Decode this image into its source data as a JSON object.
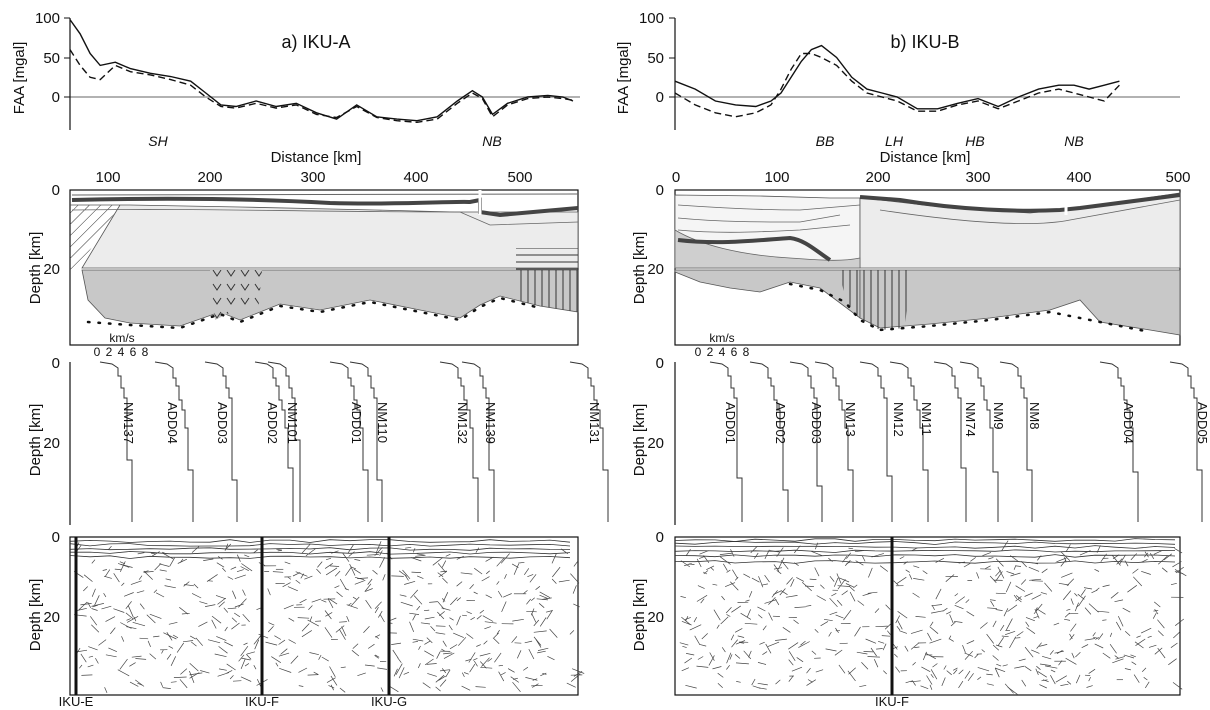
{
  "chart_data": [
    {
      "id": "faa_a",
      "type": "line",
      "title": "a) IKU-A",
      "xlabel": "Distance [km]",
      "ylabel": "FAA [mgal]",
      "xlim": [
        65,
        570
      ],
      "ylim": [
        -40,
        100
      ],
      "xticks": [
        100,
        200,
        300,
        400,
        500
      ],
      "yticks": [
        0,
        50,
        100
      ],
      "regions": [
        {
          "label": "SH",
          "x": 140
        },
        {
          "label": "NB",
          "x": 480
        }
      ],
      "series": [
        {
          "style": "solid",
          "x": [
            65,
            75,
            85,
            95,
            110,
            125,
            145,
            165,
            185,
            200,
            215,
            230,
            250,
            270,
            290,
            310,
            330,
            350,
            370,
            390,
            410,
            430,
            450,
            465,
            475,
            485,
            500,
            520,
            540,
            555,
            565
          ],
          "y": [
            98,
            80,
            55,
            40,
            44,
            36,
            30,
            26,
            20,
            5,
            -10,
            -12,
            -5,
            -12,
            -8,
            -20,
            -28,
            -10,
            -25,
            -28,
            -30,
            -25,
            -5,
            8,
            0,
            -22,
            -8,
            0,
            2,
            0,
            -5
          ]
        },
        {
          "style": "dashed",
          "x": [
            65,
            75,
            85,
            95,
            110,
            125,
            145,
            165,
            185,
            200,
            215,
            230,
            250,
            270,
            290,
            310,
            330,
            350,
            370,
            390,
            410,
            430,
            450,
            465,
            475,
            485,
            500,
            520,
            540,
            555,
            565
          ],
          "y": [
            60,
            40,
            25,
            22,
            40,
            32,
            28,
            22,
            15,
            0,
            -12,
            -14,
            -8,
            -14,
            -10,
            -22,
            -26,
            -12,
            -26,
            -30,
            -32,
            -28,
            -8,
            5,
            -2,
            -25,
            -10,
            -2,
            0,
            -2,
            -4
          ]
        }
      ]
    },
    {
      "id": "faa_b",
      "type": "line",
      "title": "b) IKU-B",
      "xlabel": "Distance [km]",
      "ylabel": "FAA [mgal]",
      "xlim": [
        0,
        500
      ],
      "ylim": [
        -40,
        100
      ],
      "xticks": [
        0,
        100,
        200,
        300,
        400,
        500
      ],
      "yticks": [
        0,
        50,
        100
      ],
      "regions": [
        {
          "label": "BB",
          "x": 150
        },
        {
          "label": "LH",
          "x": 218
        },
        {
          "label": "HB",
          "x": 300
        },
        {
          "label": "NB",
          "x": 390
        }
      ],
      "series": [
        {
          "style": "solid",
          "x": [
            0,
            20,
            40,
            60,
            80,
            95,
            105,
            115,
            125,
            135,
            145,
            160,
            175,
            190,
            205,
            220,
            240,
            260,
            280,
            300,
            320,
            340,
            360,
            380,
            395,
            410,
            425,
            440
          ],
          "y": [
            20,
            10,
            -5,
            -10,
            -12,
            -5,
            5,
            25,
            45,
            60,
            65,
            50,
            25,
            10,
            5,
            0,
            -15,
            -15,
            -8,
            -2,
            -12,
            0,
            10,
            15,
            15,
            10,
            15,
            20
          ]
        },
        {
          "style": "dashed",
          "x": [
            0,
            20,
            40,
            60,
            80,
            95,
            105,
            115,
            125,
            135,
            145,
            160,
            175,
            190,
            205,
            220,
            240,
            260,
            280,
            300,
            320,
            340,
            360,
            380,
            395,
            410,
            425,
            440
          ],
          "y": [
            5,
            -10,
            -20,
            -25,
            -20,
            -10,
            10,
            35,
            55,
            55,
            50,
            40,
            20,
            5,
            0,
            -5,
            -18,
            -18,
            -10,
            -5,
            -15,
            -5,
            5,
            10,
            5,
            0,
            -5,
            15
          ]
        }
      ]
    }
  ],
  "panel_a": {
    "title": "a) IKU-A",
    "faa_ylabel": "FAA [mgal]",
    "faa_yticks": [
      "100",
      "50",
      "0"
    ],
    "faa_xlabel": "Distance [km]",
    "regions": [
      "SH",
      "NB"
    ],
    "xticks": [
      "100",
      "200",
      "300",
      "400",
      "500"
    ],
    "depth_ylabel": "Depth [km]",
    "depth_yticks": [
      "0",
      "20"
    ],
    "vel_label": "km/s",
    "vel_ticks": [
      "0",
      "2",
      "4",
      "6",
      "8"
    ],
    "stations": [
      "NM137",
      "ADD04",
      "ADD03",
      "ADD02",
      "NM101",
      "ADD01",
      "NM110",
      "NM132",
      "NM139",
      "NM131"
    ],
    "profiles": [
      "IKU-E",
      "IKU-F",
      "IKU-G"
    ]
  },
  "panel_b": {
    "title": "b) IKU-B",
    "faa_ylabel": "FAA [mgal]",
    "faa_yticks": [
      "100",
      "50",
      "0"
    ],
    "faa_xlabel": "Distance [km]",
    "regions": [
      "BB",
      "LH",
      "HB",
      "NB"
    ],
    "xticks": [
      "0",
      "100",
      "200",
      "300",
      "400",
      "500"
    ],
    "depth_ylabel": "Depth [km]",
    "depth_yticks": [
      "0",
      "20"
    ],
    "vel_label": "km/s",
    "vel_ticks": [
      "0",
      "2",
      "4",
      "6",
      "8"
    ],
    "stations": [
      "ADD01",
      "ADD02",
      "ADD03",
      "NM13",
      "NM12",
      "NM11",
      "NM74",
      "NM9",
      "NM8",
      "ADD04",
      "ADD05"
    ],
    "profiles": [
      "IKU-F"
    ]
  }
}
